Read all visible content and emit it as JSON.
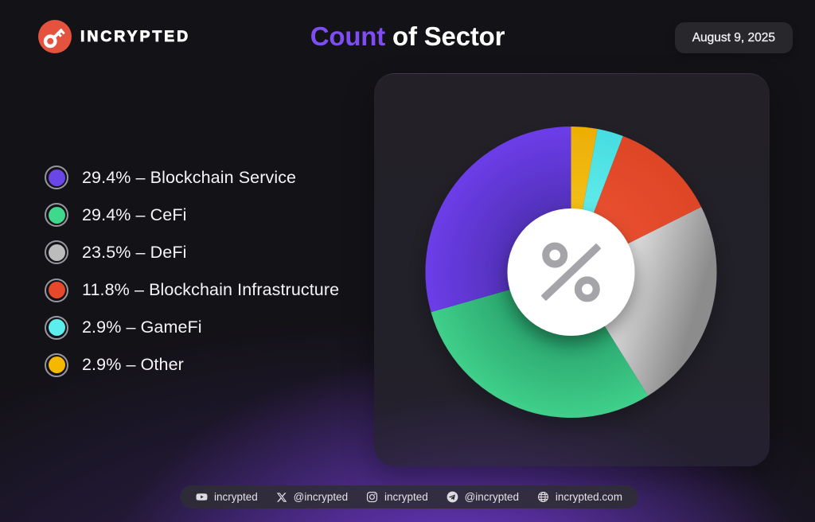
{
  "header": {
    "brand": "INCRYPTED",
    "title_accent": "Count",
    "title_rest": " of Sector",
    "date": "August 9, 2025"
  },
  "colors": {
    "accent_purple": "#7e4ef2",
    "logo_red": "#e5523e",
    "card_bg": "#232127",
    "background": "#131216"
  },
  "chart_data": {
    "type": "pie",
    "title": "Count of Sector",
    "center_symbol": "%",
    "start_angle_deg": 0,
    "direction": "clockwise-from-top-in-reverse-legend-order",
    "segments": [
      {
        "label": "Blockchain Service",
        "value": 29.4,
        "percent_text": "29.4%",
        "color": "#6a46e8",
        "gradient": "radial",
        "color_inner": "#5230b8",
        "color_outer": "#6c3de9"
      },
      {
        "label": "CeFi",
        "value": 29.4,
        "percent_text": "29.4%",
        "color": "#3ed98c",
        "gradient": "radial",
        "color_inner": "#28a26b",
        "color_outer": "#40cf8b"
      },
      {
        "label": "DeFi",
        "value": 23.5,
        "percent_text": "23.5%",
        "color": "#bcbcbc",
        "gradient": "linear-tr",
        "color_inner": "#d8d8d8",
        "color_outer": "#8c8c8c"
      },
      {
        "label": "Blockchain Infrastructure",
        "value": 11.8,
        "percent_text": "11.8%",
        "color": "#e8482a",
        "gradient": "radial",
        "color_inner": "#e9502f",
        "color_outer": "#dd4526"
      },
      {
        "label": "GameFi",
        "value": 2.9,
        "percent_text": "2.9%",
        "color": "#5ceeee",
        "gradient": "radial",
        "color_inner": "#62ebea",
        "color_outer": "#46dde1"
      },
      {
        "label": "Other",
        "value": 2.9,
        "percent_text": "2.9%",
        "color": "#f5b800",
        "gradient": "radial",
        "color_inner": "#f4c018",
        "color_outer": "#ecae04"
      }
    ],
    "legend_separator": "–"
  },
  "social": {
    "items": [
      {
        "icon": "youtube-icon",
        "label": "incrypted"
      },
      {
        "icon": "x-icon",
        "label": "@incrypted"
      },
      {
        "icon": "instagram-icon",
        "label": "incrypted"
      },
      {
        "icon": "telegram-icon",
        "label": "@incrypted"
      },
      {
        "icon": "globe-icon",
        "label": "incrypted.com"
      }
    ]
  }
}
